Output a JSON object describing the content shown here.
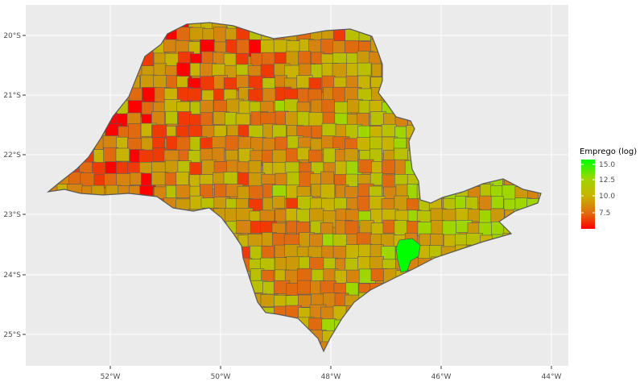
{
  "map": {
    "y_ticks": [
      "20°S",
      "21°S",
      "22°S",
      "23°S",
      "24°S",
      "25°S"
    ],
    "x_ticks": [
      "52°W",
      "50°W",
      "48°W",
      "46°W",
      "44°W"
    ],
    "background": "#ebebeb",
    "grid_color": "#ffffff",
    "border_color": "#595959"
  },
  "legend": {
    "title": "Emprego (log)",
    "labels": [
      "15.0",
      "12.5",
      "10.0",
      "7.5"
    ],
    "gradient": {
      "top": "#00ff00",
      "upper_mid": "#9fd600",
      "mid": "#c8b400",
      "lower_mid": "#e06a10",
      "bottom": "#ff0000"
    }
  },
  "chart_data": {
    "type": "choropleth",
    "title": "",
    "xlabel": "",
    "ylabel": "",
    "fill_variable": "Emprego (log)",
    "color_range": [
      5.5,
      15.8
    ],
    "legend_placement": "right",
    "grid": true,
    "x_range_deg": [
      -53.4,
      -43.7
    ],
    "y_range_deg": [
      -25.6,
      -19.55
    ],
    "highlight": {
      "region": "São Paulo metro area",
      "value": 15.6
    }
  }
}
